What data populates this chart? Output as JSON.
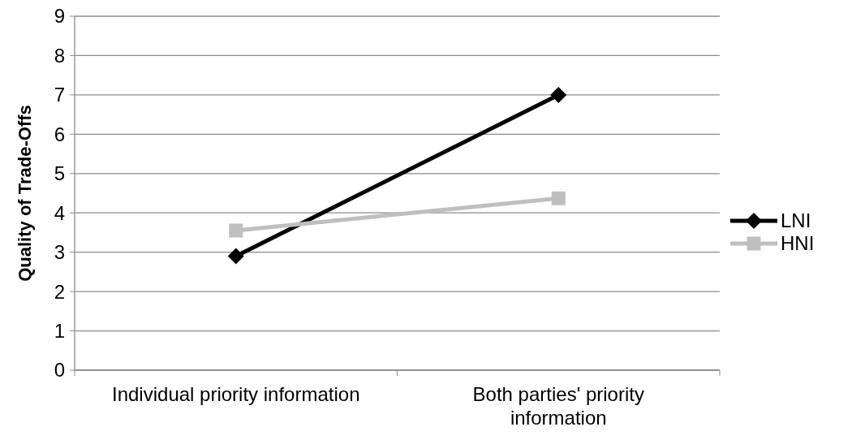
{
  "chart_data": {
    "type": "line",
    "ylabel": "Quality of Trade-Offs",
    "categories": [
      "Individual priority information",
      "Both parties' priority information"
    ],
    "series": [
      {
        "name": "LNI",
        "color": "#000000",
        "values": [
          2.9,
          7.0
        ],
        "marker": "diamond"
      },
      {
        "name": "HNI",
        "color": "#bfbfbf",
        "values": [
          3.55,
          4.37
        ],
        "marker": "square"
      }
    ],
    "ylim": [
      0,
      9
    ],
    "yticks": [
      0,
      1,
      2,
      3,
      4,
      5,
      6,
      7,
      8,
      9
    ],
    "grid": "y",
    "legend": "right"
  }
}
